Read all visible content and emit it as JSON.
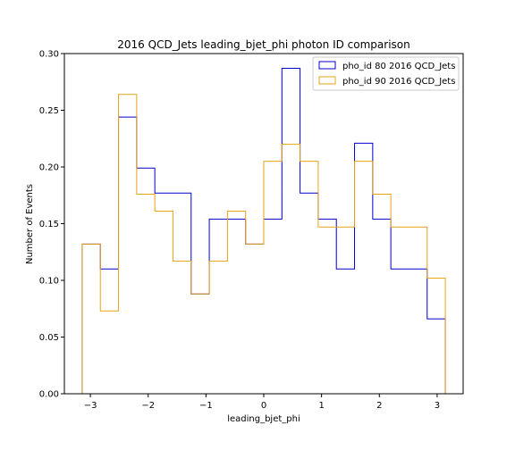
{
  "chart_data": {
    "type": "step-histogram",
    "title": "2016 QCD_Jets leading_bjet_phi photon ID comparison",
    "xlabel": "leading_bjet_phi",
    "ylabel": "Number of Events",
    "xlim": [
      -3.45,
      3.45
    ],
    "ylim": [
      0.0,
      0.3
    ],
    "xticks": [
      -3,
      -2,
      -1,
      0,
      1,
      2,
      3
    ],
    "xtick_labels": [
      "−3",
      "−2",
      "−1",
      "0",
      "1",
      "2",
      "3"
    ],
    "yticks": [
      0.0,
      0.05,
      0.1,
      0.15,
      0.2,
      0.25,
      0.3
    ],
    "ytick_labels": [
      "0.00",
      "0.05",
      "0.10",
      "0.15",
      "0.20",
      "0.25",
      "0.30"
    ],
    "bin_edges": [
      -3.1416,
      -2.8274,
      -2.5133,
      -2.1991,
      -1.885,
      -1.5708,
      -1.2566,
      -0.9425,
      -0.6283,
      -0.3142,
      0.0,
      0.3142,
      0.6283,
      0.9425,
      1.2566,
      1.5708,
      1.885,
      2.1991,
      2.5133,
      2.8274,
      3.1416
    ],
    "legend_position": "upper right",
    "series": [
      {
        "name": "pho_id 80 2016 QCD_Jets",
        "color": "#0000cc",
        "values": [
          0.132,
          0.11,
          0.244,
          0.199,
          0.177,
          0.177,
          0.088,
          0.154,
          0.154,
          0.132,
          0.154,
          0.287,
          0.177,
          0.154,
          0.11,
          0.221,
          0.154,
          0.11,
          0.11,
          0.066
        ]
      },
      {
        "name": "pho_id 90 2016 QCD_Jets",
        "color": "#e8a317",
        "values": [
          0.132,
          0.073,
          0.264,
          0.176,
          0.161,
          0.117,
          0.088,
          0.117,
          0.161,
          0.132,
          0.205,
          0.22,
          0.205,
          0.147,
          0.147,
          0.205,
          0.176,
          0.147,
          0.147,
          0.102
        ]
      }
    ]
  }
}
